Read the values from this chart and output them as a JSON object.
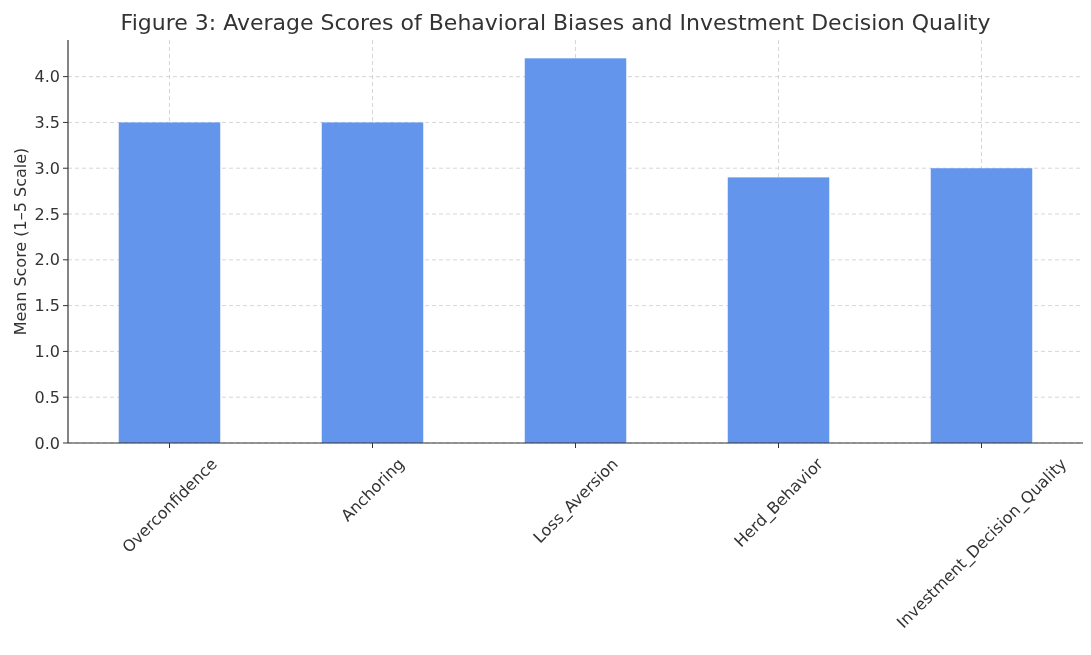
{
  "chart_data": {
    "type": "bar",
    "title": "Figure 3: Average Scores of Behavioral Biases and Investment Decision Quality",
    "ylabel": "Mean Score (1–5 Scale)",
    "categories": [
      "Overconfidence",
      "Anchoring",
      "Loss_Aversion",
      "Herd_Behavior",
      "Investment_Decision_Quality"
    ],
    "values": [
      3.5,
      3.5,
      4.2,
      2.9,
      3.0
    ],
    "color": "#6495ed",
    "ylim": [
      0,
      4.4
    ],
    "yticks": [
      {
        "value": 0,
        "label": "0.0"
      },
      {
        "value": 0.5,
        "label": "0.5"
      },
      {
        "value": 1,
        "label": "1.0"
      },
      {
        "value": 1.5,
        "label": "1.5"
      },
      {
        "value": 2,
        "label": "2.0"
      },
      {
        "value": 2.5,
        "label": "2.5"
      },
      {
        "value": 3,
        "label": "3.0"
      },
      {
        "value": 3.5,
        "label": "3.5"
      },
      {
        "value": 4,
        "label": "4.0"
      }
    ],
    "grid": true
  }
}
